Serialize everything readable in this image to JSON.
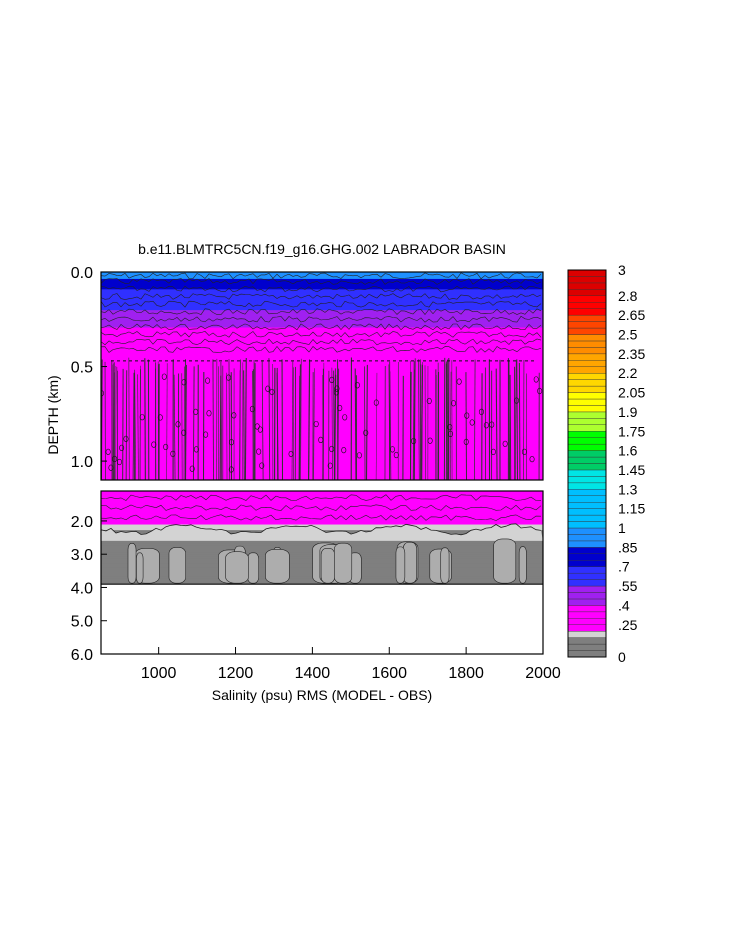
{
  "chart_data": {
    "type": "heatmap",
    "title": "b.e11.BLMTRC5CN.f19_g16.GHG.002 LABRADOR BASIN",
    "xlabel": "Salinity (psu) RMS (MODEL - OBS)",
    "ylabel": "DEPTH (km)",
    "xlim": [
      850,
      2000
    ],
    "x_ticks": [
      "1000",
      "1200",
      "1400",
      "1600",
      "1800",
      "2000"
    ],
    "x_tick_values": [
      1000,
      1200,
      1400,
      1600,
      1800,
      2000
    ],
    "upper_panel": {
      "ylim": [
        0.0,
        1.1
      ],
      "y_ticks": [
        "0.0",
        "0.5",
        "1.0"
      ],
      "y_tick_values": [
        0.0,
        0.5,
        1.0
      ]
    },
    "lower_panel": {
      "ylim": [
        1.1,
        6.0
      ],
      "y_ticks": [
        "2.0",
        "3.0",
        "4.0",
        "5.0",
        "6.0"
      ],
      "y_tick_values": [
        2.0,
        3.0,
        4.0,
        5.0,
        6.0
      ]
    },
    "ocean_floor_depth_km": 3.9,
    "depth_profile": [
      {
        "depth": 0.0,
        "value": 0.95
      },
      {
        "depth": 0.1,
        "value": 0.7
      },
      {
        "depth": 0.2,
        "value": 0.55
      },
      {
        "depth": 0.3,
        "value": 0.4
      },
      {
        "depth": 0.4,
        "value": 0.3
      },
      {
        "depth": 0.6,
        "value": 0.25
      },
      {
        "depth": 1.1,
        "value": 0.25
      },
      {
        "depth": 2.0,
        "value": 0.25
      },
      {
        "depth": 2.4,
        "value": 0.1
      },
      {
        "depth": 3.9,
        "value": 0.05
      }
    ],
    "colorbar": {
      "min": 0,
      "max": 3,
      "labels": [
        "3",
        "2.8",
        "2.65",
        "2.5",
        "2.35",
        "2.2",
        "2.05",
        "1.9",
        "1.75",
        "1.6",
        "1.45",
        "1.3",
        "1.15",
        "1",
        ".85",
        ".7",
        ".55",
        ".4",
        ".25",
        "0"
      ],
      "label_values": [
        3,
        2.8,
        2.65,
        2.5,
        2.35,
        2.2,
        2.05,
        1.9,
        1.75,
        1.6,
        1.45,
        1.3,
        1.15,
        1,
        0.85,
        0.7,
        0.55,
        0.4,
        0.25,
        0
      ],
      "stops": [
        {
          "value": 0.0,
          "color": "#7f7f7f"
        },
        {
          "value": 0.15,
          "color": "#d3d3d3"
        },
        {
          "value": 0.2,
          "color": "#ff00ff"
        },
        {
          "value": 0.4,
          "color": "#a020f0"
        },
        {
          "value": 0.55,
          "color": "#3030ff"
        },
        {
          "value": 0.7,
          "color": "#0000cd"
        },
        {
          "value": 0.85,
          "color": "#1e90ff"
        },
        {
          "value": 1.0,
          "color": "#00bfff"
        },
        {
          "value": 1.3,
          "color": "#00e5e5"
        },
        {
          "value": 1.45,
          "color": "#00cd66"
        },
        {
          "value": 1.6,
          "color": "#00ff00"
        },
        {
          "value": 1.75,
          "color": "#adff2f"
        },
        {
          "value": 1.9,
          "color": "#ffff00"
        },
        {
          "value": 2.05,
          "color": "#ffd700"
        },
        {
          "value": 2.2,
          "color": "#ffa500"
        },
        {
          "value": 2.35,
          "color": "#ff8c00"
        },
        {
          "value": 2.5,
          "color": "#ff4500"
        },
        {
          "value": 2.65,
          "color": "#ff0000"
        },
        {
          "value": 2.8,
          "color": "#dc0000"
        },
        {
          "value": 3.0,
          "color": "#b00000"
        }
      ]
    }
  }
}
